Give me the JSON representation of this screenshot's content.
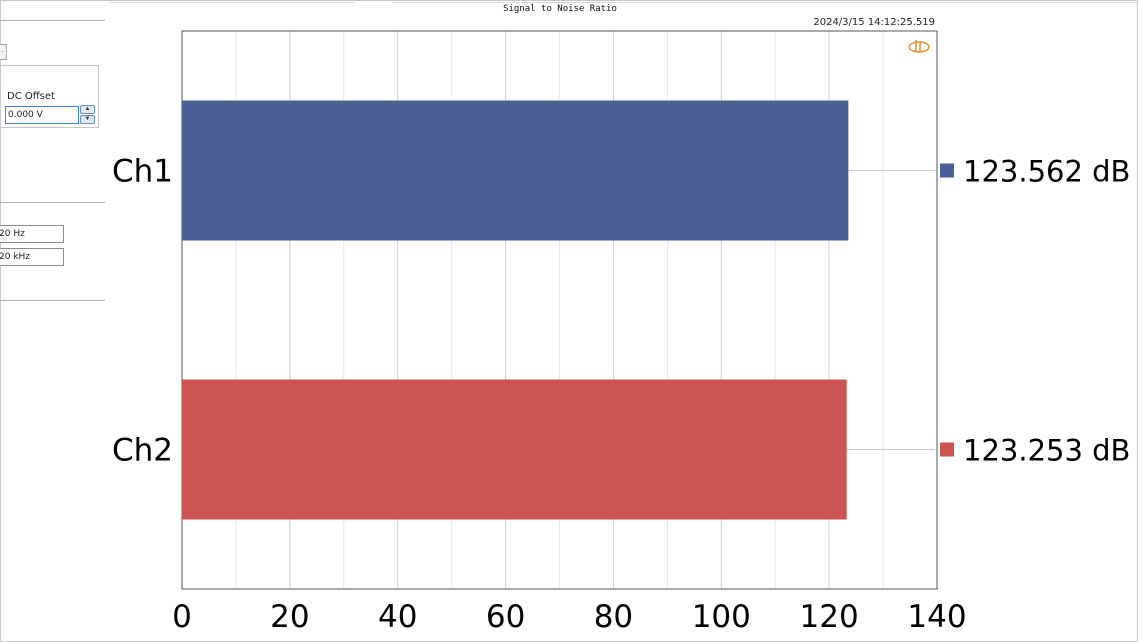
{
  "panel": {
    "small_button_label": "·",
    "dc_offset_label": "DC Offset",
    "dc_offset_value": "0.000 V",
    "spin_up": "▲",
    "spin_down": "▼",
    "freq_low": "20 Hz",
    "freq_high": "20 kHz"
  },
  "header": {
    "title": "Signal to Noise Ratio",
    "timestamp": "2024/3/15 14:12:25.519",
    "logo_icon": "analyzer-logo-icon"
  },
  "chart_data": {
    "type": "bar",
    "orientation": "horizontal",
    "title": "Signal to Noise Ratio",
    "categories": [
      "Ch1",
      "Ch2"
    ],
    "values": [
      123.562,
      123.253
    ],
    "value_labels": [
      "123.562 dB",
      "123.253 dB"
    ],
    "colors": [
      "#4a6097",
      "#cd5551"
    ],
    "xlim": [
      0,
      140
    ],
    "xticks": [
      "0",
      "20",
      "40",
      "60",
      "80",
      "100",
      "120",
      "140"
    ],
    "grid": true
  }
}
